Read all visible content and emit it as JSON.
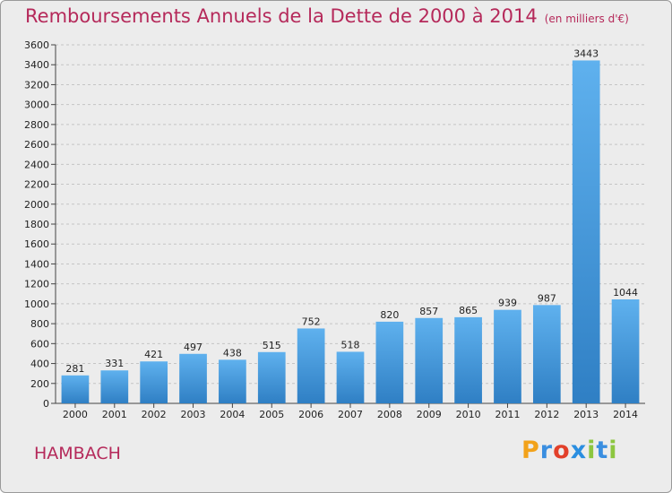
{
  "chart_data": {
    "type": "bar",
    "title": "Remboursements Annuels de la Dette de 2000 à 2014",
    "unit_note": "(en milliers d'€)",
    "categories": [
      "2000",
      "2001",
      "2002",
      "2003",
      "2004",
      "2005",
      "2006",
      "2007",
      "2008",
      "2009",
      "2010",
      "2011",
      "2012",
      "2013",
      "2014"
    ],
    "values": [
      281,
      331,
      421,
      497,
      438,
      515,
      752,
      518,
      820,
      857,
      865,
      939,
      987,
      3443,
      1044
    ],
    "ylim": [
      0,
      3600
    ],
    "yticks": [
      0,
      200,
      400,
      600,
      800,
      1000,
      1200,
      1400,
      1600,
      1800,
      2000,
      2200,
      2400,
      2600,
      2800,
      3000,
      3200,
      3400,
      3600
    ],
    "grid": true,
    "bar_color": "#4a9ee0"
  },
  "place": "HAMBACH",
  "logo": {
    "p": "P",
    "r": "r",
    "o": "o",
    "x": "x",
    "i": "i",
    "t": "t",
    "i2": "i"
  }
}
